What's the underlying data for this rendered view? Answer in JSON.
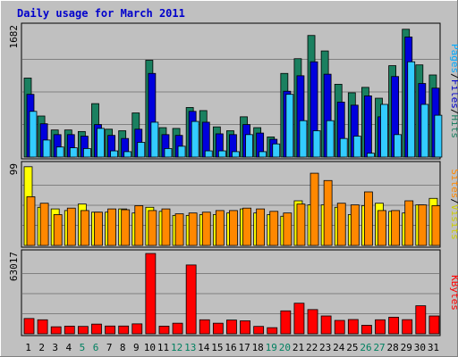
{
  "chart_data": {
    "type": "bar",
    "title": "Daily usage for March 2011",
    "categories": [
      "1",
      "2",
      "3",
      "4",
      "5",
      "6",
      "7",
      "8",
      "9",
      "10",
      "11",
      "12",
      "13",
      "14",
      "15",
      "16",
      "17",
      "18",
      "19",
      "20",
      "21",
      "22",
      "23",
      "24",
      "25",
      "26",
      "27",
      "28",
      "29",
      "30",
      "31"
    ],
    "weekend_days": [
      "5",
      "6",
      "12",
      "13",
      "19",
      "20",
      "26",
      "27"
    ],
    "panels": [
      {
        "id": "hits",
        "ymax": 1682,
        "ymax_label": "1682",
        "side_labels": [
          "Pages",
          "Files",
          "Hits"
        ],
        "series": [
          {
            "name": "Hits",
            "color": "#1a8060",
            "values": [
              1020,
              530,
              350,
              350,
              330,
              690,
              360,
              340,
              570,
              1250,
              380,
              370,
              640,
              600,
              390,
              340,
              520,
              380,
              260,
              1080,
              1270,
              1570,
              1370,
              940,
              830,
              900,
              760,
              1180,
              1650,
              1190,
              1060
            ]
          },
          {
            "name": "Files",
            "color": "#0000dd",
            "values": [
              810,
              430,
              290,
              290,
              270,
              420,
              280,
              240,
              360,
              1080,
              290,
              280,
              590,
              450,
              300,
              290,
              420,
              310,
              230,
              850,
              1050,
              1230,
              1070,
              710,
              670,
              790,
              520,
              1040,
              1550,
              950,
              890
            ]
          },
          {
            "name": "Pages",
            "color": "#33ccff",
            "values": [
              590,
              220,
              130,
              120,
              110,
              370,
              80,
              70,
              190,
              450,
              110,
              140,
              460,
              80,
              80,
              70,
              290,
              70,
              170,
              810,
              470,
              340,
              470,
              240,
              270,
              50,
              680,
              290,
              1230,
              680,
              540
            ]
          }
        ]
      },
      {
        "id": "visits",
        "ymax": 99,
        "ymax_label": "99",
        "side_labels": [
          "Sites",
          "Visits"
        ],
        "series": [
          {
            "name": "Visits",
            "color": "#ffff00",
            "values": [
              97,
              47,
              45,
              43,
              51,
              41,
              41,
              45,
              40,
              47,
              42,
              37,
              37,
              38,
              38,
              40,
              45,
              40,
              38,
              36,
              55,
              50,
              50,
              47,
              38,
              49,
              52,
              42,
              40,
              50,
              58
            ]
          },
          {
            "name": "Sites",
            "color": "#ff8800",
            "values": [
              60,
              52,
              38,
              46,
              43,
              41,
              45,
              44,
              49,
              43,
              45,
              39,
              40,
              41,
              43,
              43,
              46,
              45,
              42,
              40,
              51,
              89,
              80,
              52,
              50,
              66,
              43,
              43,
              55,
              50,
              49
            ]
          }
        ]
      },
      {
        "id": "kbytes",
        "ymax": 63017,
        "ymax_label": "63017",
        "side_labels": [
          "KBytes"
        ],
        "series": [
          {
            "name": "KBytes",
            "color": "#ff0000",
            "values": [
              12000,
              11000,
              5500,
              6000,
              5800,
              7600,
              6100,
              6100,
              7800,
              63000,
              6000,
              8300,
              54000,
              11000,
              8300,
              10800,
              10200,
              5800,
              4800,
              18000,
              24000,
              19000,
              14000,
              10500,
              11200,
              6700,
              11000,
              13000,
              11100,
              22000,
              14000
            ]
          }
        ]
      }
    ]
  }
}
